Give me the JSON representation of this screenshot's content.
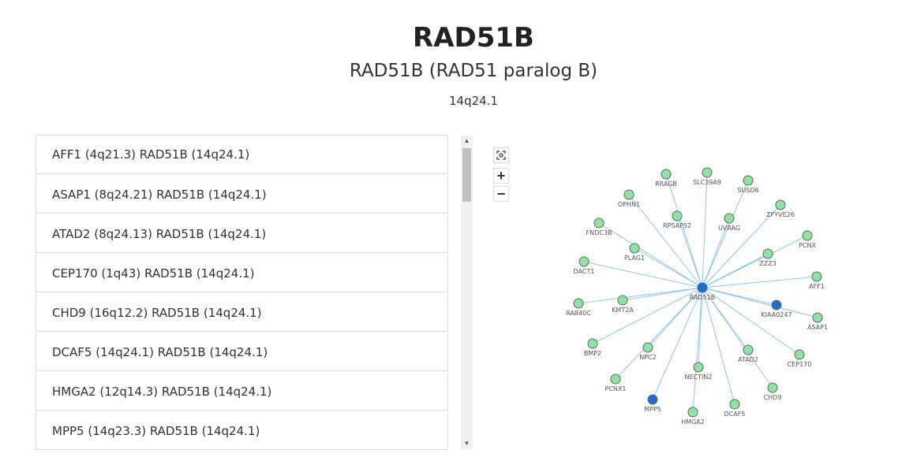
{
  "header": {
    "gene": "RAD51B",
    "full_name": "RAD51B (RAD51 paralog B)",
    "locus": "14q24.1"
  },
  "partners": [
    "AFF1 (4q21.3) RAD51B (14q24.1)",
    "ASAP1 (8q24.21) RAD51B (14q24.1)",
    "ATAD2 (8q24.13) RAD51B (14q24.1)",
    "CEP170 (1q43) RAD51B (14q24.1)",
    "CHD9 (16q12.2) RAD51B (14q24.1)",
    "DCAF5 (14q24.1) RAD51B (14q24.1)",
    "HMGA2 (12q14.3) RAD51B (14q24.1)",
    "MPP5 (14q23.3) RAD51B (14q24.1)"
  ],
  "controls": {
    "fit_icon": "fit-view-icon",
    "zoom_in": "+",
    "zoom_out": "−"
  },
  "network": {
    "colors": {
      "green": "#8de3a2",
      "blue": "#1a6fd1",
      "edge": "#8ec6ee"
    },
    "center": "RAD51B",
    "nodes": [
      {
        "label": "RRAGB",
        "color": "green"
      },
      {
        "label": "SLC39A9",
        "color": "green"
      },
      {
        "label": "SUSD6",
        "color": "green"
      },
      {
        "label": "OPHN1",
        "color": "green"
      },
      {
        "label": "ZFYVE26",
        "color": "green"
      },
      {
        "label": "RPSAP52",
        "color": "green"
      },
      {
        "label": "UVRAG",
        "color": "green"
      },
      {
        "label": "FNDC3B",
        "color": "green"
      },
      {
        "label": "PCNX",
        "color": "green"
      },
      {
        "label": "PLAG1",
        "color": "green"
      },
      {
        "label": "ZZZ3",
        "color": "green"
      },
      {
        "label": "DACT1",
        "color": "green"
      },
      {
        "label": "AFF1",
        "color": "green"
      },
      {
        "label": "RAD51B",
        "color": "blue"
      },
      {
        "label": "RAB40C",
        "color": "green"
      },
      {
        "label": "KMT2A",
        "color": "green"
      },
      {
        "label": "KIAA0247",
        "color": "blue"
      },
      {
        "label": "ASAP1",
        "color": "green"
      },
      {
        "label": "BMP2",
        "color": "green"
      },
      {
        "label": "NPC2",
        "color": "green"
      },
      {
        "label": "ATAD2",
        "color": "green"
      },
      {
        "label": "CEP170",
        "color": "green"
      },
      {
        "label": "NECTIN2",
        "color": "green"
      },
      {
        "label": "PCNX1",
        "color": "green"
      },
      {
        "label": "CHD9",
        "color": "green"
      },
      {
        "label": "MPP5",
        "color": "blue"
      },
      {
        "label": "DCAF5",
        "color": "green"
      },
      {
        "label": "HMGA2",
        "color": "green"
      }
    ]
  }
}
